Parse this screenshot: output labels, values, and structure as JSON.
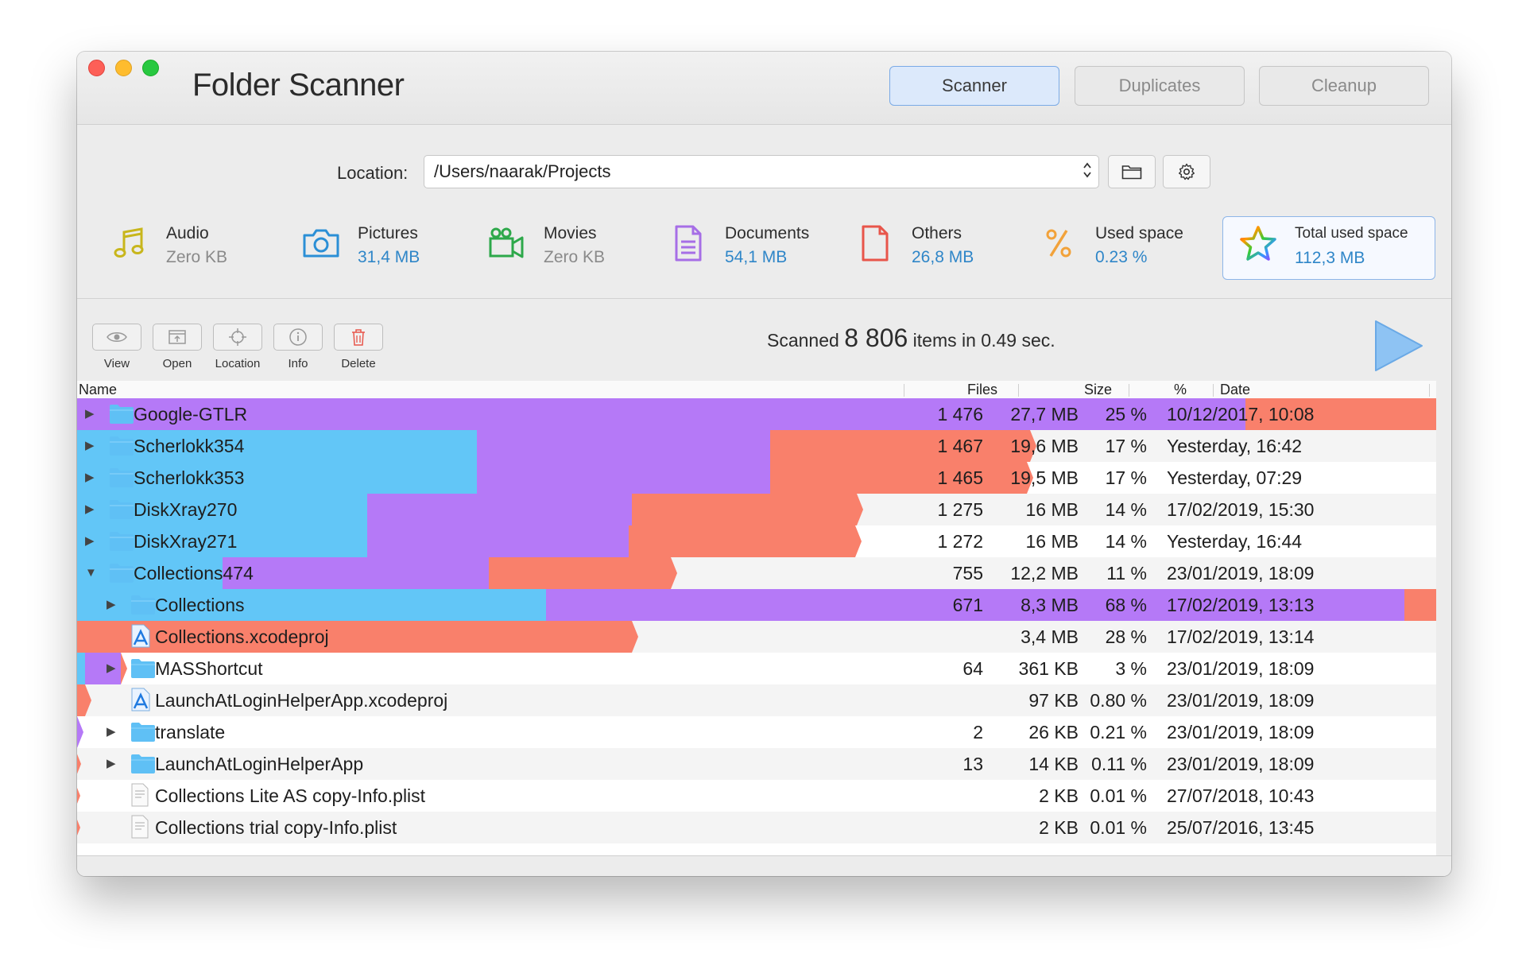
{
  "window": {
    "title": "Folder Scanner",
    "tabs": [
      {
        "label": "Scanner",
        "active": true
      },
      {
        "label": "Duplicates",
        "active": false
      },
      {
        "label": "Cleanup",
        "active": false
      }
    ]
  },
  "location": {
    "label": "Location:",
    "value": "/Users/naarak/Projects"
  },
  "stats": [
    {
      "label": "Audio",
      "value": "Zero KB",
      "icon": "music-note-icon",
      "color": "#c8b61c"
    },
    {
      "label": "Pictures",
      "value": "31,4 MB",
      "icon": "camera-icon",
      "color": "#2b8fd6"
    },
    {
      "label": "Movies",
      "value": "Zero KB",
      "icon": "video-camera-icon",
      "color": "#2da84a"
    },
    {
      "label": "Documents",
      "value": "54,1 MB",
      "icon": "document-icon",
      "color": "#a66ee6"
    },
    {
      "label": "Others",
      "value": "26,8 MB",
      "icon": "blank-file-icon",
      "color": "#e8554a"
    },
    {
      "label": "Used space",
      "value": "0.23 %",
      "icon": "percent-icon",
      "color": "#f2a23a"
    },
    {
      "label": "Total used space",
      "value": "112,3 MB",
      "icon": "rainbow-star-icon",
      "color": "#2b8fd6"
    }
  ],
  "toolbar": {
    "view": "View",
    "open": "Open",
    "location": "Location",
    "info": "Info",
    "delete": "Delete"
  },
  "scan": {
    "prefix": "Scanned",
    "count": "8 806",
    "suffix": "items in 0.49 sec."
  },
  "columns": {
    "name": "Name",
    "files": "Files",
    "size": "Size",
    "percent": "%",
    "date": "Date"
  },
  "colors": {
    "blue": "#62c6f7",
    "purple": "#b579f7",
    "red": "#f9806b",
    "folder": "#5fc0f5"
  },
  "rows": [
    {
      "name": "Google-GTLR",
      "files": "1 476",
      "size": "27,7 MB",
      "percent": "25 %",
      "date": "10/12/2017, 10:08",
      "type": "folder",
      "expand": "collapsed",
      "indent": 0
    },
    {
      "name": "Scherlokk354",
      "files": "1 467",
      "size": "19,6 MB",
      "percent": "17 %",
      "date": "Yesterday, 16:42",
      "type": "folder",
      "expand": "collapsed",
      "indent": 0
    },
    {
      "name": "Scherlokk353",
      "files": "1 465",
      "size": "19,5 MB",
      "percent": "17 %",
      "date": "Yesterday, 07:29",
      "type": "folder",
      "expand": "collapsed",
      "indent": 0
    },
    {
      "name": "DiskXray270",
      "files": "1 275",
      "size": "16 MB",
      "percent": "14 %",
      "date": "17/02/2019, 15:30",
      "type": "folder",
      "expand": "collapsed",
      "indent": 0
    },
    {
      "name": "DiskXray271",
      "files": "1 272",
      "size": "16 MB",
      "percent": "14 %",
      "date": "Yesterday, 16:44",
      "type": "folder",
      "expand": "collapsed",
      "indent": 0
    },
    {
      "name": "Collections474",
      "files": "755",
      "size": "12,2 MB",
      "percent": "11 %",
      "date": "23/01/2019, 18:09",
      "type": "folder",
      "expand": "expanded",
      "indent": 0
    },
    {
      "name": "Collections",
      "files": "671",
      "size": "8,3 MB",
      "percent": "68 %",
      "date": "17/02/2019, 13:13",
      "type": "folder",
      "expand": "collapsed",
      "indent": 1
    },
    {
      "name": "Collections.xcodeproj",
      "files": "",
      "size": "3,4 MB",
      "percent": "28 %",
      "date": "17/02/2019, 13:14",
      "type": "xcode",
      "expand": "none",
      "indent": 1
    },
    {
      "name": "MASShortcut",
      "files": "64",
      "size": "361 KB",
      "percent": "3 %",
      "date": "23/01/2019, 18:09",
      "type": "folder",
      "expand": "collapsed",
      "indent": 1
    },
    {
      "name": "LaunchAtLoginHelperApp.xcodeproj",
      "files": "",
      "size": "97 KB",
      "percent": "0.80 %",
      "date": "23/01/2019, 18:09",
      "type": "xcode",
      "expand": "none",
      "indent": 1
    },
    {
      "name": "translate",
      "files": "2",
      "size": "26 KB",
      "percent": "0.21 %",
      "date": "23/01/2019, 18:09",
      "type": "folder",
      "expand": "collapsed",
      "indent": 1
    },
    {
      "name": "LaunchAtLoginHelperApp",
      "files": "13",
      "size": "14 KB",
      "percent": "0.11 %",
      "date": "23/01/2019, 18:09",
      "type": "folder",
      "expand": "collapsed",
      "indent": 1
    },
    {
      "name": "Collections Lite AS copy-Info.plist",
      "files": "",
      "size": "2 KB",
      "percent": "0.01 %",
      "date": "27/07/2018, 10:43",
      "type": "plist",
      "expand": "none",
      "indent": 1
    },
    {
      "name": "Collections trial copy-Info.plist",
      "files": "",
      "size": "2 KB",
      "percent": "0.01 %",
      "date": "25/07/2016, 13:45",
      "type": "plist",
      "expand": "none",
      "indent": 1
    }
  ]
}
